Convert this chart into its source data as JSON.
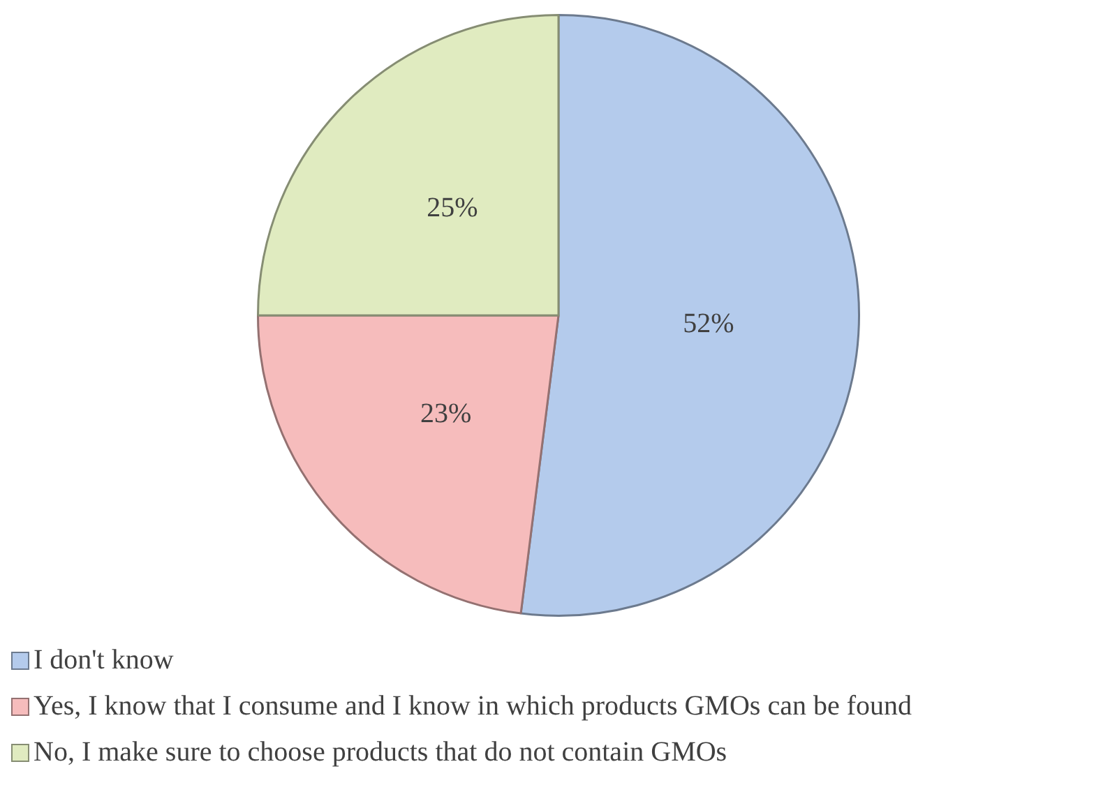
{
  "chart_data": {
    "type": "pie",
    "categories": [
      "I don't know",
      "Yes, I know that I consume and I know in which products GMOs can be found",
      "No, I make sure to choose products that do not contain GMOs"
    ],
    "values": [
      52,
      23,
      25
    ],
    "colors": [
      "#b4cbec",
      "#f6bcbc",
      "#e0ebc0"
    ],
    "value_labels": [
      "52%",
      "23%",
      "25%"
    ],
    "legend": "bottom left"
  }
}
